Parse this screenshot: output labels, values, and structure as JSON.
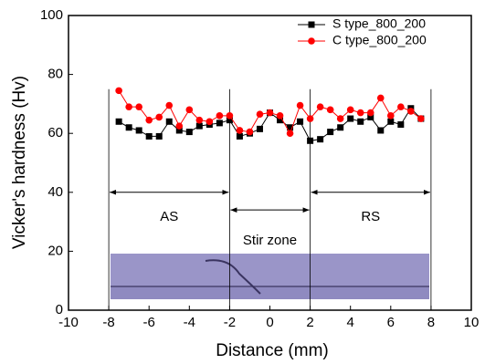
{
  "chart_data": {
    "type": "line",
    "x_label": "Distance (mm)",
    "y_label": "Vicker's hardness (Hv)",
    "xlim": [
      -10,
      10
    ],
    "xticks": [
      -10,
      -8,
      -6,
      -4,
      -2,
      0,
      2,
      4,
      6,
      8,
      10
    ],
    "ylim": [
      0,
      100
    ],
    "yticks": [
      0,
      20,
      40,
      60,
      80,
      100
    ],
    "legend": "top-right",
    "x": [
      -7.5,
      -7,
      -6.5,
      -6,
      -5.5,
      -5,
      -4.5,
      -4,
      -3.5,
      -3,
      -2.5,
      -2,
      -1.5,
      -1,
      -0.5,
      0,
      0.5,
      1,
      1.5,
      2,
      2.5,
      3,
      3.5,
      4,
      4.5,
      5,
      5.5,
      6,
      6.5,
      7,
      7.5
    ],
    "series": [
      {
        "name": "S type_800_200",
        "color": "#000000",
        "marker": "square",
        "values": [
          64,
          62,
          61,
          59,
          59,
          64,
          61,
          60.5,
          62.5,
          63,
          63.5,
          64.5,
          59,
          60,
          61.5,
          67,
          64.5,
          62,
          64,
          57.5,
          58,
          60.5,
          62,
          65,
          64,
          65.5,
          61,
          64,
          63,
          68.5,
          65
        ]
      },
      {
        "name": "C type_800_200",
        "color": "#ff0000",
        "marker": "circle",
        "values": [
          74.5,
          69,
          69,
          64.5,
          65.5,
          69.5,
          62.5,
          68,
          64.5,
          64,
          66,
          66,
          61,
          60.5,
          66.5,
          67,
          66,
          60,
          69.5,
          65,
          69,
          68,
          65,
          68,
          67,
          67,
          72,
          66,
          69,
          67.5,
          65
        ]
      }
    ],
    "zone_boundaries": [
      -8,
      -2,
      2,
      8
    ],
    "annotations": [
      {
        "text": "AS",
        "x_range": [
          -8,
          -2
        ]
      },
      {
        "text": "Stir zone",
        "x_range": [
          -2,
          2
        ]
      },
      {
        "text": "RS",
        "x_range": [
          2,
          8
        ]
      }
    ]
  }
}
